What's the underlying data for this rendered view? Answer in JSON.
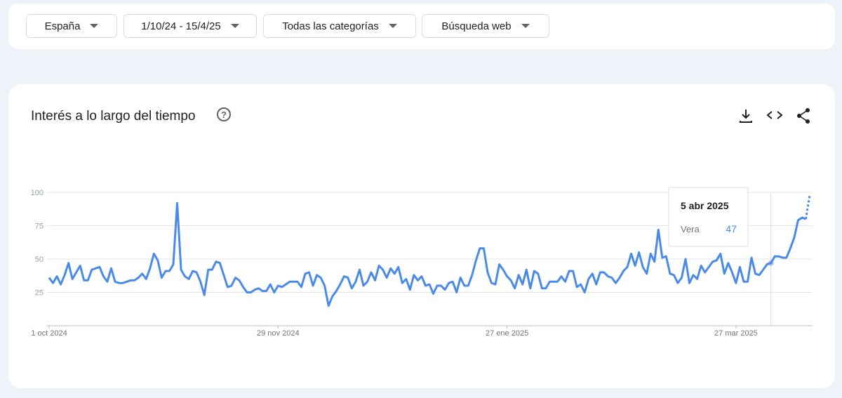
{
  "filters": [
    "España",
    "1/10/24 - 15/4/25",
    "Todas las categorías",
    "Búsqueda web"
  ],
  "chart_data": {
    "type": "line",
    "title": "Interés a lo largo del tiempo",
    "series": [
      {
        "name": "Vera",
        "color": "#4a8ae8",
        "values": [
          36,
          32,
          37,
          31,
          38,
          47,
          35,
          40,
          45,
          34,
          34,
          42,
          43,
          44,
          37,
          33,
          43,
          33,
          32,
          32,
          33,
          34,
          34,
          36,
          39,
          35,
          43,
          54,
          49,
          36,
          41,
          41,
          46,
          92,
          42,
          37,
          35,
          41,
          40,
          33,
          23,
          42,
          42,
          48,
          47,
          38,
          29,
          30,
          36,
          34,
          29,
          25,
          25,
          27,
          28,
          26,
          26,
          31,
          25,
          30,
          29,
          31,
          33,
          33,
          33,
          29,
          39,
          40,
          30,
          38,
          36,
          30,
          15,
          22,
          26,
          31,
          37,
          36,
          28,
          33,
          42,
          30,
          33,
          40,
          34,
          45,
          42,
          36,
          43,
          39,
          44,
          32,
          35,
          27,
          38,
          34,
          37,
          30,
          31,
          24,
          30,
          30,
          27,
          32,
          33,
          25,
          36,
          30,
          30,
          38,
          49,
          58,
          58,
          40,
          32,
          31,
          46,
          42,
          37,
          34,
          28,
          38,
          31,
          42,
          28,
          41,
          39,
          28,
          28,
          33,
          33,
          33,
          37,
          33,
          41,
          41,
          29,
          31,
          25,
          35,
          39,
          31,
          40,
          40,
          37,
          36,
          32,
          36,
          41,
          44,
          54,
          45,
          55,
          44,
          39,
          54,
          48,
          72,
          51,
          52,
          39,
          38,
          32,
          36,
          50,
          32,
          38,
          35,
          45,
          40,
          44,
          48,
          49,
          54,
          39,
          47,
          40,
          32,
          44,
          33,
          33,
          51,
          39,
          38,
          42,
          46,
          47,
          52,
          52,
          51,
          51,
          58,
          66,
          79,
          81,
          80,
          98
        ]
      }
    ],
    "partial_last": true,
    "xlim": [
      0,
      196
    ],
    "xticks": [
      {
        "value": 0,
        "label": "1 oct 2024"
      },
      {
        "value": 59,
        "label": "29 nov 2024"
      },
      {
        "value": 118,
        "label": "27 ene 2025"
      },
      {
        "value": 177,
        "label": "27 mar 2025"
      }
    ],
    "ylim": [
      0,
      100
    ],
    "yticks": [
      25,
      50,
      75,
      100
    ],
    "grid": true,
    "tooltip": {
      "index": 186,
      "date": "5 abr 2025"
    }
  }
}
